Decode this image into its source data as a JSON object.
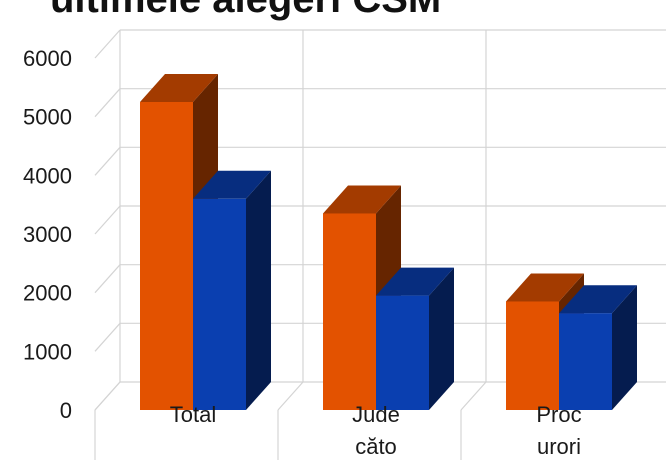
{
  "chart_data": {
    "type": "bar",
    "title": "ultimele alegeri CSM",
    "categories": [
      "Total",
      "Jude\ncăto",
      "Proc\nurori"
    ],
    "series": [
      {
        "values": [
          5250,
          3350,
          1850
        ],
        "color": "#e35200"
      },
      {
        "values": [
          3600,
          1950,
          1650
        ],
        "color": "#0a3fb0"
      }
    ],
    "ylim": [
      0,
      6000
    ],
    "yticks": [
      0,
      1000,
      2000,
      3000,
      4000,
      5000,
      6000
    ],
    "grid": true,
    "style": "3d-clustered-column"
  }
}
